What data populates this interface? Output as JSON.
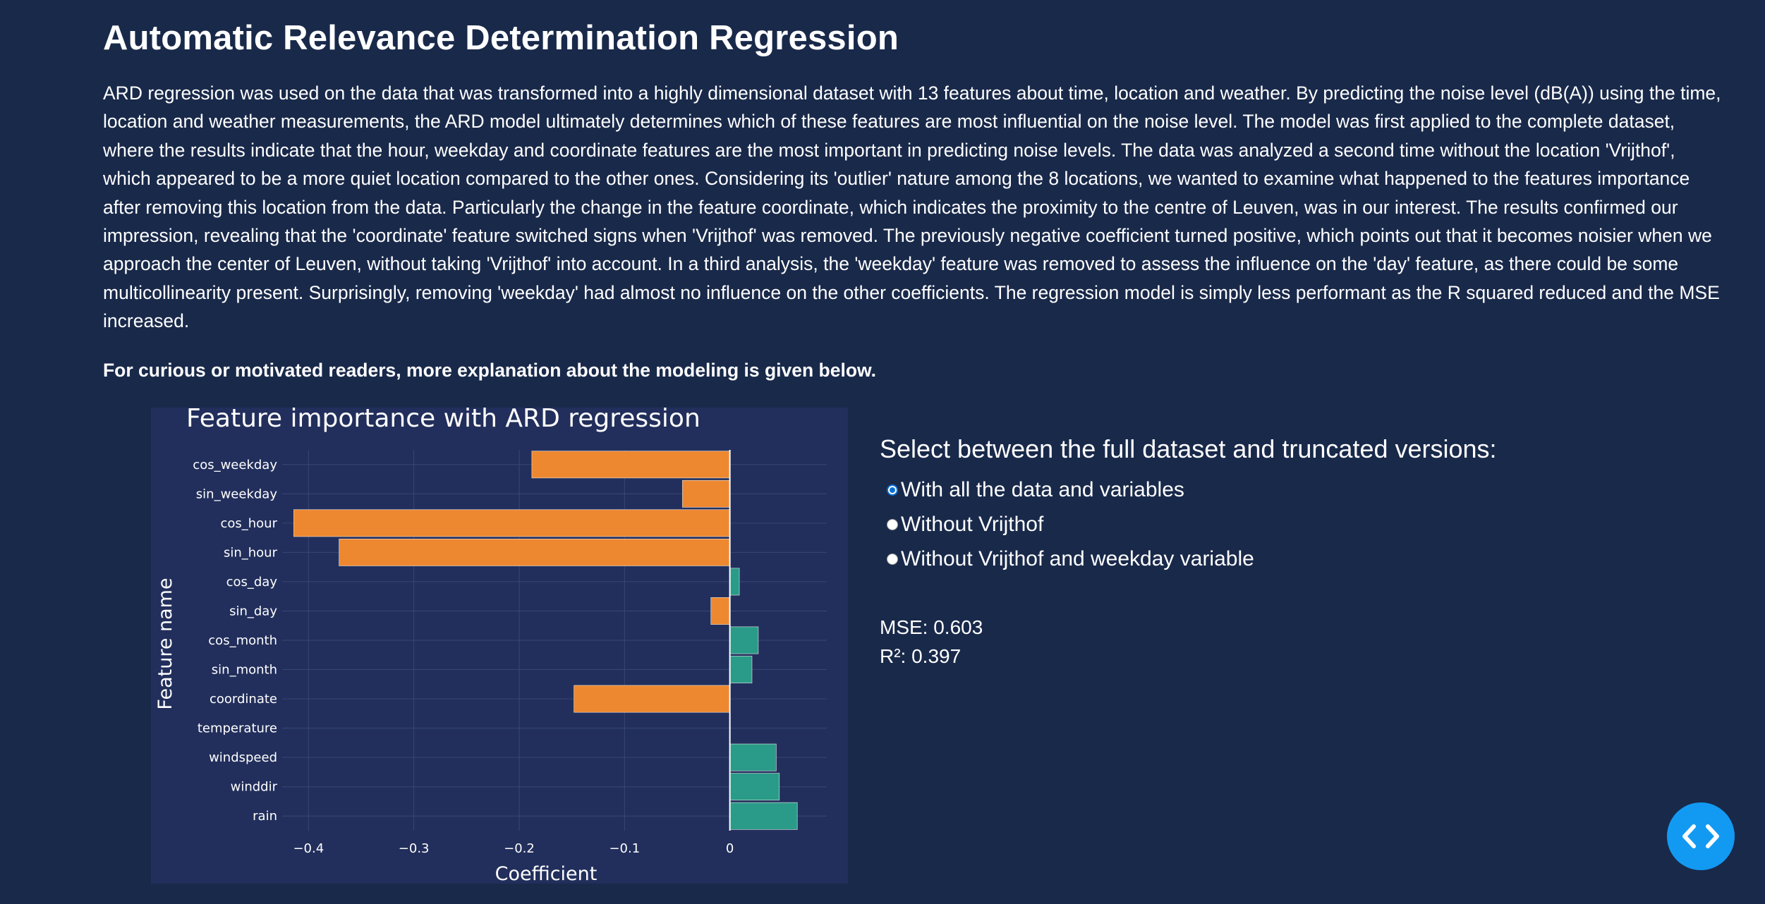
{
  "page": {
    "title": "Automatic Relevance Determination Regression",
    "description": "ARD regression was used on the data that was transformed into a highly dimensional dataset with 13 features about time, location and weather. By predicting the noise level (dB(A)) using the time, location and weather measurements, the ARD model ultimately determines which of these features are most influential on the noise level. The model was first applied to the complete dataset, where the results indicate that the hour, weekday and coordinate features are the most important in predicting noise levels. The data was analyzed a second time without the location 'Vrijthof', which appeared to be a more quiet location compared to the other ones. Considering its 'outlier' nature among the 8 locations, we wanted to examine what happened to the features importance after removing this location from the data. Particularly the change in the feature coordinate, which indicates the proximity to the centre of Leuven, was in our interest. The results confirmed our impression, revealing that the 'coordinate' feature switched signs when 'Vrijthof' was removed. The previously negative coefficient turned positive, which points out that it becomes noisier when we approach the center of Leuven, without taking 'Vrijthof' into account. In a third analysis, the 'weekday' feature was removed to assess the influence on the 'day' feature, as there could be some multicollinearity present. Surprisingly, removing 'weekday' had almost no influence on the other coefficients. The regression model is simply less performant as the R squared reduced and the MSE increased.",
    "note": "For curious or motivated readers, more explanation about the modeling is given below."
  },
  "controls": {
    "title": "Select between the full dataset and truncated versions:",
    "options": [
      {
        "label": "With all the data and variables",
        "selected": true
      },
      {
        "label": "Without Vrijthof",
        "selected": false
      },
      {
        "label": "Without Vrijthof and weekday variable",
        "selected": false
      }
    ],
    "mse": "MSE: 0.603",
    "r2": "R²: 0.397"
  },
  "chart_data": {
    "type": "bar",
    "orientation": "horizontal",
    "title": "Feature importance with ARD regression",
    "xlabel": "Coefficient",
    "ylabel": "Feature name",
    "xlim": [
      -0.425,
      0.092
    ],
    "xticks": [
      -0.4,
      -0.3,
      -0.2,
      -0.1,
      0
    ],
    "xtick_labels": [
      "−0.4",
      "−0.3",
      "−0.2",
      "−0.1",
      "0"
    ],
    "grid": true,
    "categories": [
      "cos_weekday",
      "sin_weekday",
      "cos_hour",
      "sin_hour",
      "cos_day",
      "sin_day",
      "cos_month",
      "sin_month",
      "coordinate",
      "temperature",
      "windspeed",
      "winddir",
      "rain"
    ],
    "values": [
      -0.188,
      -0.045,
      -0.414,
      -0.371,
      0.009,
      -0.018,
      0.027,
      0.021,
      -0.148,
      0.0,
      0.044,
      0.047,
      0.064
    ],
    "colors": {
      "negative": "#ee8830",
      "positive": "#2a9b88",
      "background": "#222f5c",
      "grid": "#3a4673",
      "zeroline": "#ffffff"
    }
  },
  "fab": {
    "icon": "code-icon"
  }
}
